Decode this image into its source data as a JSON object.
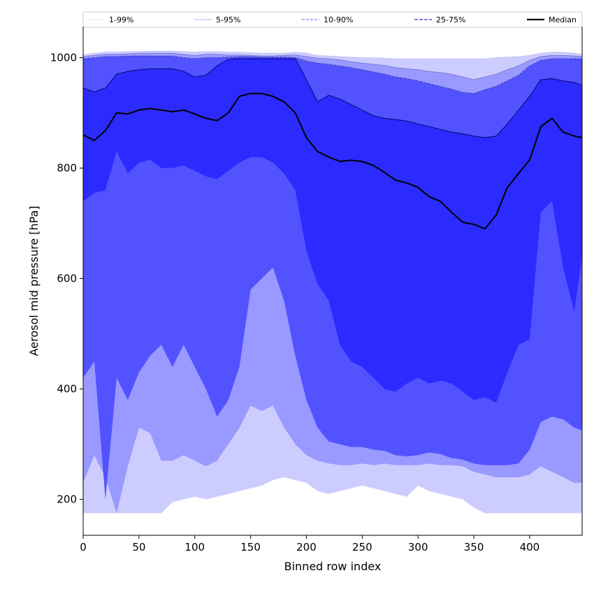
{
  "chart_data": {
    "type": "area",
    "xlabel": "Binned row index",
    "ylabel": "Aerosol mid pressure [hPa]",
    "xlim": [
      0,
      447
    ],
    "ylim": [
      135,
      1055
    ],
    "x_ticks": [
      0,
      50,
      100,
      150,
      200,
      250,
      300,
      350,
      400
    ],
    "y_ticks": [
      200,
      400,
      600,
      800,
      1000
    ],
    "legend_position": "top",
    "legend": [
      {
        "label": "1-99%",
        "style": "solid-thin",
        "color": "#ccccff"
      },
      {
        "label": "5-95%",
        "style": "solid-thin",
        "color": "#9999ff"
      },
      {
        "label": "10-90%",
        "style": "dashed",
        "color": "#8080ff"
      },
      {
        "label": "25-75%",
        "style": "dashed",
        "color": "#5050e0"
      },
      {
        "label": "Median",
        "style": "solid-thick",
        "color": "#000000"
      }
    ],
    "x": [
      0,
      10,
      20,
      30,
      40,
      50,
      60,
      70,
      80,
      90,
      100,
      110,
      120,
      130,
      140,
      150,
      160,
      170,
      180,
      190,
      200,
      210,
      220,
      230,
      240,
      250,
      260,
      270,
      280,
      290,
      300,
      310,
      320,
      330,
      340,
      350,
      360,
      370,
      380,
      390,
      400,
      410,
      420,
      430,
      440,
      447
    ],
    "bands": [
      {
        "name": "1-99%",
        "color": "#ccccff",
        "lower": [
          175,
          175,
          175,
          175,
          175,
          175,
          175,
          175,
          195,
          200,
          205,
          200,
          205,
          210,
          215,
          220,
          225,
          235,
          240,
          235,
          230,
          215,
          210,
          215,
          220,
          225,
          220,
          215,
          210,
          205,
          225,
          215,
          210,
          205,
          200,
          185,
          175,
          175,
          175,
          175,
          175,
          175,
          175,
          175,
          175,
          175
        ],
        "upper": [
          1005,
          1008,
          1010,
          1010,
          1011,
          1011,
          1012,
          1012,
          1012,
          1011,
          1010,
          1011,
          1011,
          1010,
          1010,
          1009,
          1008,
          1008,
          1008,
          1010,
          1008,
          1004,
          1003,
          1002,
          1001,
          1000,
          1000,
          999,
          998,
          998,
          998,
          998,
          998,
          998,
          998,
          998,
          998,
          1000,
          1001,
          1002,
          1004,
          1008,
          1010,
          1010,
          1008,
          1006
        ]
      },
      {
        "name": "5-95%",
        "color": "#9999ff",
        "lower": [
          230,
          280,
          240,
          175,
          260,
          330,
          320,
          270,
          270,
          280,
          270,
          260,
          270,
          300,
          330,
          370,
          360,
          370,
          330,
          300,
          280,
          270,
          265,
          262,
          262,
          265,
          262,
          265,
          262,
          262,
          262,
          265,
          262,
          262,
          260,
          250,
          245,
          240,
          240,
          240,
          245,
          260,
          250,
          240,
          230,
          230
        ],
        "upper": [
          1002,
          1004,
          1006,
          1006,
          1007,
          1008,
          1008,
          1008,
          1008,
          1006,
          1004,
          1006,
          1006,
          1005,
          1005,
          1004,
          1003,
          1003,
          1004,
          1005,
          1002,
          999,
          998,
          996,
          993,
          990,
          988,
          986,
          982,
          980,
          978,
          975,
          973,
          970,
          965,
          960,
          965,
          970,
          978,
          985,
          995,
          1002,
          1004,
          1004,
          1003,
          1002
        ]
      },
      {
        "name": "10-90%",
        "color": "#5252ff",
        "lower": [
          420,
          450,
          200,
          420,
          380,
          430,
          460,
          480,
          440,
          480,
          440,
          400,
          350,
          380,
          440,
          580,
          600,
          620,
          560,
          460,
          380,
          330,
          305,
          300,
          295,
          295,
          290,
          288,
          280,
          278,
          280,
          285,
          282,
          275,
          272,
          265,
          262,
          262,
          262,
          265,
          290,
          340,
          350,
          345,
          330,
          325
        ],
        "upper": [
          998,
          1000,
          1002,
          1002,
          1003,
          1003,
          1003,
          1003,
          1003,
          1000,
          998,
          1000,
          1000,
          1001,
          1002,
          1002,
          1001,
          1001,
          1001,
          1000,
          994,
          990,
          988,
          985,
          982,
          978,
          974,
          970,
          965,
          962,
          958,
          953,
          948,
          943,
          937,
          935,
          942,
          948,
          958,
          968,
          985,
          995,
          998,
          998,
          998,
          998
        ]
      },
      {
        "name": "25-75%",
        "color": "#2b2bff",
        "lower": [
          740,
          755,
          760,
          830,
          790,
          810,
          815,
          800,
          800,
          805,
          795,
          785,
          780,
          795,
          810,
          820,
          820,
          810,
          790,
          760,
          650,
          590,
          560,
          480,
          450,
          440,
          420,
          400,
          395,
          410,
          420,
          410,
          415,
          410,
          395,
          380,
          385,
          375,
          430,
          480,
          490,
          720,
          740,
          620,
          540,
          640
        ],
        "upper": [
          945,
          938,
          945,
          970,
          975,
          978,
          980,
          980,
          980,
          975,
          965,
          968,
          985,
          997,
          998,
          998,
          998,
          998,
          998,
          998,
          960,
          920,
          932,
          925,
          915,
          905,
          895,
          890,
          888,
          885,
          880,
          875,
          870,
          865,
          862,
          858,
          855,
          858,
          880,
          905,
          930,
          960,
          962,
          958,
          955,
          950
        ]
      }
    ],
    "series": [
      {
        "name": "Median",
        "color": "#000000",
        "values": [
          860,
          850,
          868,
          900,
          898,
          905,
          908,
          905,
          902,
          905,
          898,
          890,
          886,
          900,
          930,
          935,
          935,
          930,
          920,
          900,
          855,
          830,
          820,
          812,
          814,
          812,
          805,
          792,
          778,
          773,
          765,
          748,
          740,
          720,
          702,
          698,
          690,
          715,
          765,
          790,
          815,
          875,
          890,
          865,
          858,
          855
        ]
      }
    ]
  }
}
